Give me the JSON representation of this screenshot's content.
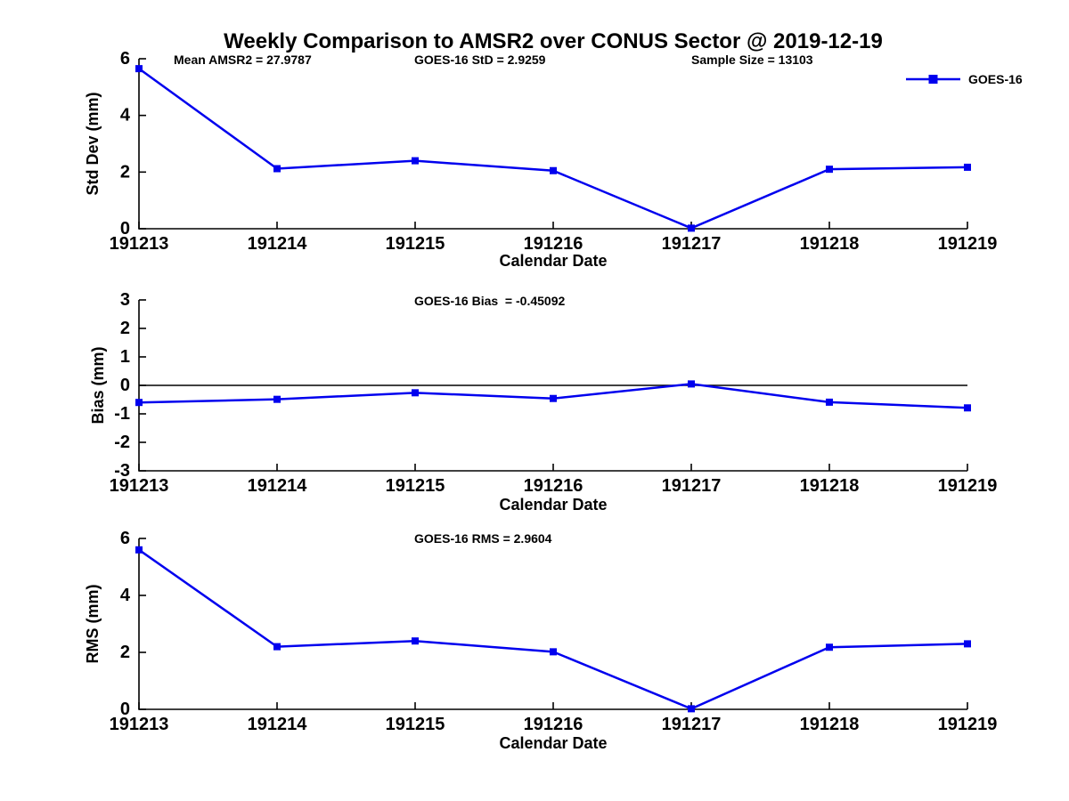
{
  "title": "Weekly Comparison to AMSR2 over CONUS Sector @ 2019-12-19",
  "legend": {
    "label": "GOES-16"
  },
  "colors": {
    "series": "#0000EE",
    "axis": "#000000",
    "zero_line": "#000000",
    "text": "#000000",
    "background": "#FFFFFF"
  },
  "chart_data": [
    {
      "type": "line",
      "id": "std-dev",
      "annotations": [
        "Mean AMSR2 = 27.9787",
        "GOES-16 StD = 2.9259",
        "Sample Size = 13103"
      ],
      "categories": [
        "191213",
        "191214",
        "191215",
        "191216",
        "191217",
        "191218",
        "191219"
      ],
      "series": [
        {
          "name": "GOES-16",
          "values": [
            5.65,
            2.12,
            2.4,
            2.05,
            0.02,
            2.1,
            2.17
          ]
        }
      ],
      "xlabel": "Calendar Date",
      "ylabel": "Std Dev (mm)",
      "ylim": [
        0,
        6
      ],
      "yticks": [
        0,
        2,
        4,
        6
      ],
      "grid": false,
      "legend_position": "top-right"
    },
    {
      "type": "line",
      "id": "bias",
      "annotations": [
        "GOES-16 Bias  = -0.45092"
      ],
      "categories": [
        "191213",
        "191214",
        "191215",
        "191216",
        "191217",
        "191218",
        "191219"
      ],
      "series": [
        {
          "name": "GOES-16",
          "values": [
            -0.6,
            -0.49,
            -0.26,
            -0.46,
            0.05,
            -0.59,
            -0.79
          ]
        }
      ],
      "xlabel": "Calendar Date",
      "ylabel": "Bias (mm)",
      "ylim": [
        -3,
        3
      ],
      "yticks": [
        -3,
        -2,
        -1,
        0,
        1,
        2,
        3
      ],
      "zero_line": true,
      "grid": false
    },
    {
      "type": "line",
      "id": "rms",
      "annotations": [
        "GOES-16 RMS = 2.9604"
      ],
      "categories": [
        "191213",
        "191214",
        "191215",
        "191216",
        "191217",
        "191218",
        "191219"
      ],
      "series": [
        {
          "name": "GOES-16",
          "values": [
            5.6,
            2.2,
            2.4,
            2.02,
            0.02,
            2.18,
            2.3
          ]
        }
      ],
      "xlabel": "Calendar Date",
      "ylabel": "RMS (mm)",
      "ylim": [
        0,
        6
      ],
      "yticks": [
        0,
        2,
        4,
        6
      ],
      "grid": false
    }
  ]
}
